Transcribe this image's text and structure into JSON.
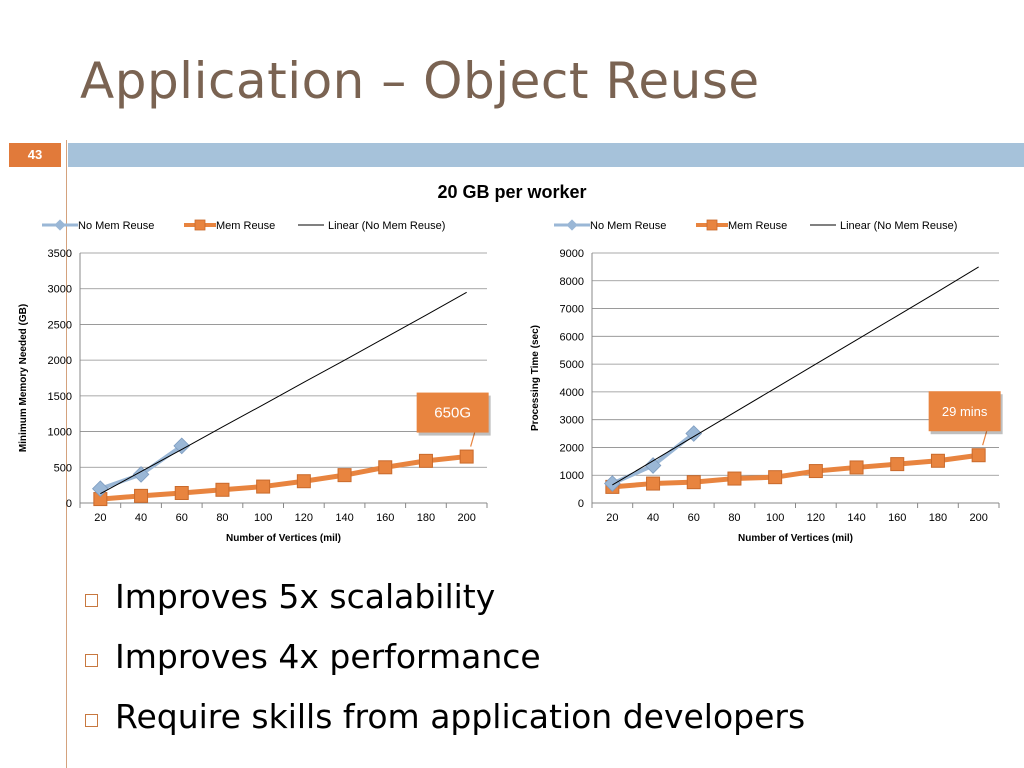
{
  "slide": {
    "title": "Application – Object Reuse",
    "number": "43",
    "bullets": [
      "Improves 5x scalability",
      "Improves 4x performance",
      "Require skills from application developers"
    ]
  },
  "colors": {
    "no_mem_reuse": "#9ab7d6",
    "mem_reuse": "#e8843f",
    "linear": "#000000",
    "accent": "#e17a3a",
    "header_bar": "#a6c2da",
    "title": "#7a6352",
    "callout_fill": "#e8843f"
  },
  "figure_title": "20 GB per worker",
  "chart_data": [
    {
      "type": "line",
      "xlabel": "Number of Vertices (mil)",
      "ylabel": "Minimum Memory Needed (GB)",
      "categories": [
        "20",
        "40",
        "60",
        "80",
        "100",
        "120",
        "140",
        "160",
        "180",
        "200"
      ],
      "ylim": [
        0,
        3500
      ],
      "yticks": [
        0,
        500,
        1000,
        1500,
        2000,
        2500,
        3000,
        3500
      ],
      "legend": [
        "No Mem Reuse",
        "Mem Reuse",
        "Linear (No Mem Reuse)"
      ],
      "legend_position": "top",
      "grid": true,
      "series": [
        {
          "name": "No Mem Reuse",
          "values": [
            200,
            400,
            800,
            null,
            null,
            null,
            null,
            null,
            null,
            null
          ]
        },
        {
          "name": "Mem Reuse",
          "values": [
            55,
            100,
            140,
            185,
            230,
            305,
            390,
            500,
            590,
            650
          ]
        },
        {
          "name": "Linear (No Mem Reuse)",
          "values": [
            130,
            440,
            750,
            1065,
            1375,
            1690,
            2000,
            2315,
            2630,
            2950
          ]
        }
      ],
      "callout": {
        "text": "650G",
        "target_index": 9
      }
    },
    {
      "type": "line",
      "xlabel": "Number of Vertices (mil)",
      "ylabel": "Processing Time (sec)",
      "categories": [
        "20",
        "40",
        "60",
        "80",
        "100",
        "120",
        "140",
        "160",
        "180",
        "200"
      ],
      "ylim": [
        0,
        9000
      ],
      "yticks": [
        0,
        1000,
        2000,
        3000,
        4000,
        5000,
        6000,
        7000,
        8000,
        9000
      ],
      "legend": [
        "No Mem Reuse",
        "Mem Reuse",
        "Linear (No Mem Reuse)"
      ],
      "legend_position": "top",
      "grid": true,
      "series": [
        {
          "name": "No Mem Reuse",
          "values": [
            700,
            1350,
            2500,
            null,
            null,
            null,
            null,
            null,
            null,
            null
          ]
        },
        {
          "name": "Mem Reuse",
          "values": [
            580,
            700,
            750,
            880,
            930,
            1150,
            1280,
            1400,
            1520,
            1720
          ]
        },
        {
          "name": "Linear (No Mem Reuse)",
          "values": [
            650,
            1520,
            2390,
            3260,
            4130,
            5000,
            5870,
            6740,
            7610,
            8500
          ]
        }
      ],
      "callout": {
        "text": "29 mins",
        "target_index": 9
      }
    }
  ]
}
